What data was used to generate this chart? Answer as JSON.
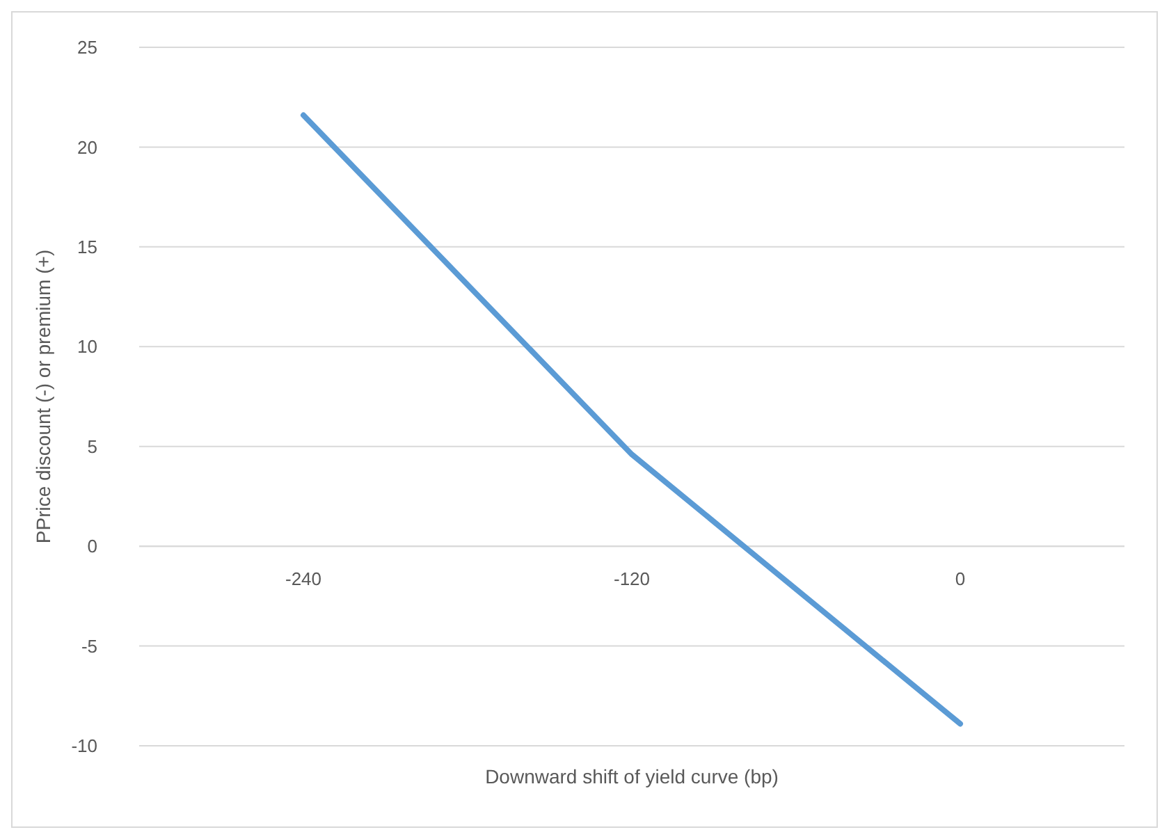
{
  "chart_data": {
    "type": "line",
    "xlabel": "Downward shift of yield curve (bp)",
    "ylabel": "PPrice discount (-) or premium (+)",
    "categories": [
      "-240",
      "-120",
      "0"
    ],
    "series": [
      {
        "color": "#5b9bd5",
        "values": [
          21.6,
          4.6,
          -8.9
        ]
      }
    ],
    "ylim": [
      -10,
      25
    ],
    "yticks": [
      -10,
      -5,
      0,
      5,
      10,
      15,
      20,
      25
    ],
    "grid": "y",
    "marker": "none",
    "line_style": "solid"
  }
}
